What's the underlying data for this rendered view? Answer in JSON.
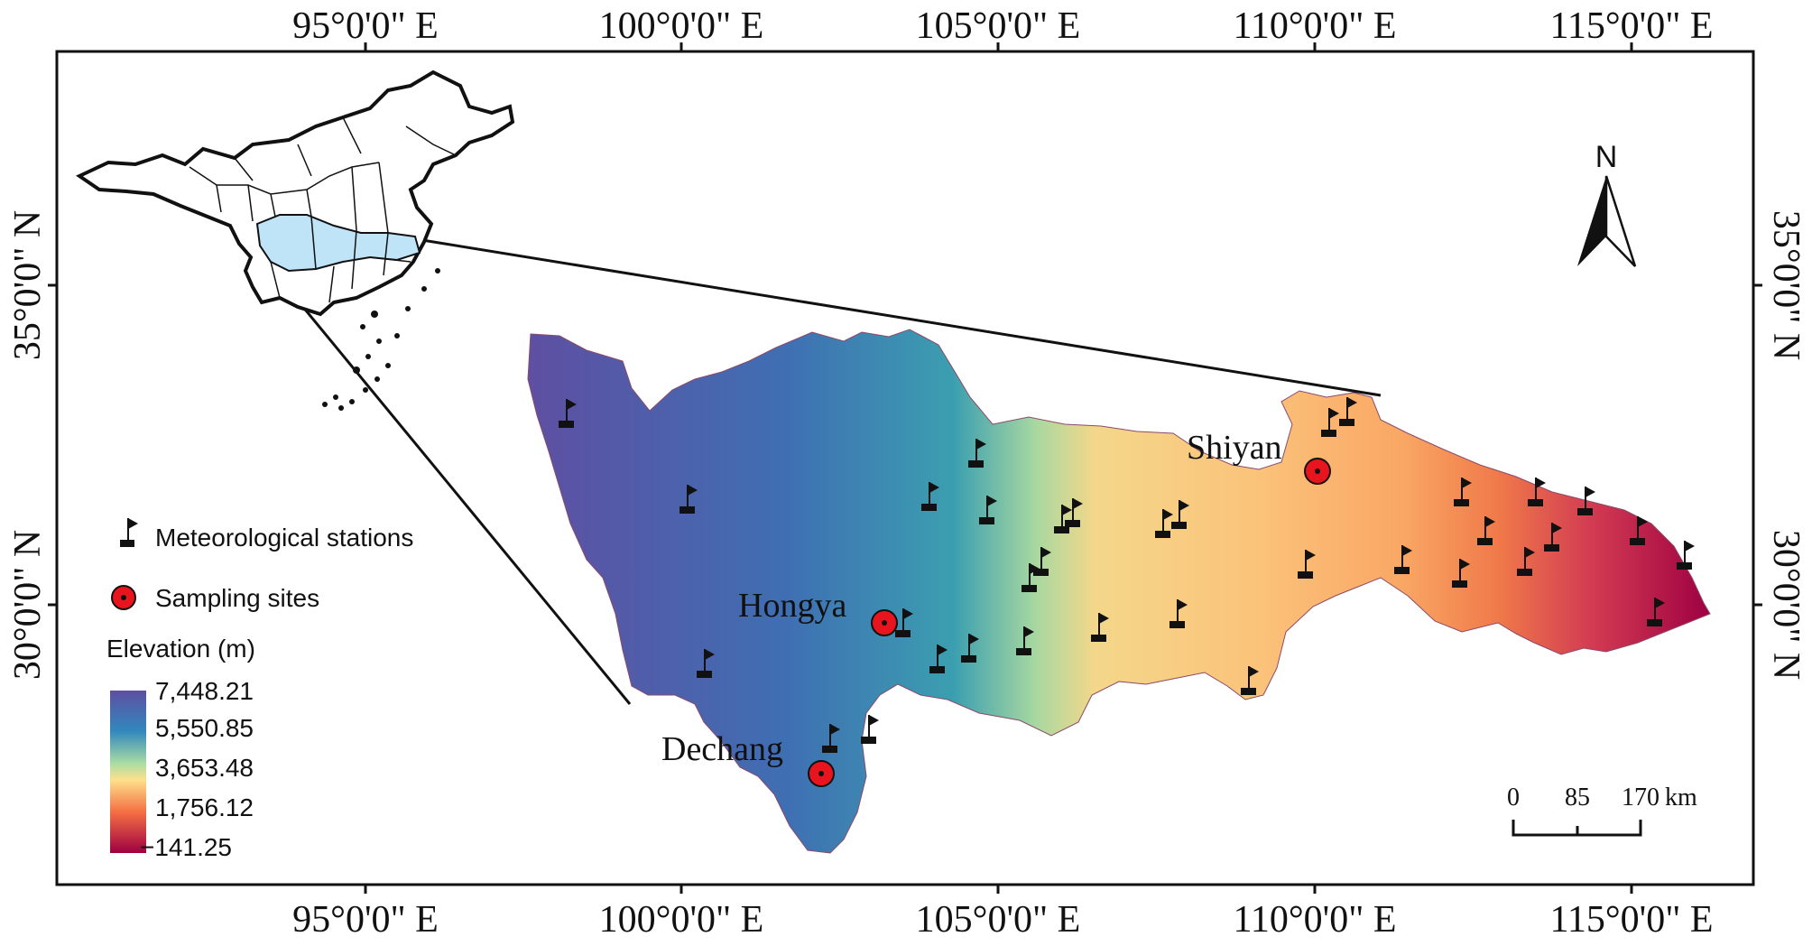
{
  "top_ticks": [
    "95°0'0\" E",
    "100°0'0\" E",
    "105°0'0\" E",
    "110°0'0\" E",
    "115°0'0\" E"
  ],
  "bottom_ticks": [
    "95°0'0\" E",
    "100°0'0\" E",
    "105°0'0\" E",
    "110°0'0\" E",
    "115°0'0\" E"
  ],
  "left_ticks": [
    "35°0'0\" N",
    "30°0'0\" N"
  ],
  "right_ticks": [
    "35°0'0\" N",
    "30°0'0\" N"
  ],
  "north_label": "N",
  "sites": [
    {
      "name": "Hongya"
    },
    {
      "name": "Shiyan"
    },
    {
      "name": "Dechang"
    }
  ],
  "legend": {
    "stations_label": "Meteorological stations",
    "sites_label": "Sampling sites",
    "elevation_title": "Elevation (m)",
    "elevation_values": [
      "7,448.21",
      "5,550.85",
      "3,653.48",
      "1,756.12",
      "−141.25"
    ]
  },
  "scale_bar": {
    "labels": [
      "0",
      "85",
      "170"
    ],
    "unit": "km"
  },
  "colors": {
    "elev_high": "#5e4fa2",
    "elev_upper": "#3288bd",
    "elev_mid_high": "#66c2a5",
    "elev_mid": "#e6f598",
    "elev_mid_low": "#fdae61",
    "elev_low": "#f46d43",
    "elev_lowest": "#9e0142",
    "study_area_inset": "#bfe3f7",
    "site_marker": "#e8141e"
  }
}
